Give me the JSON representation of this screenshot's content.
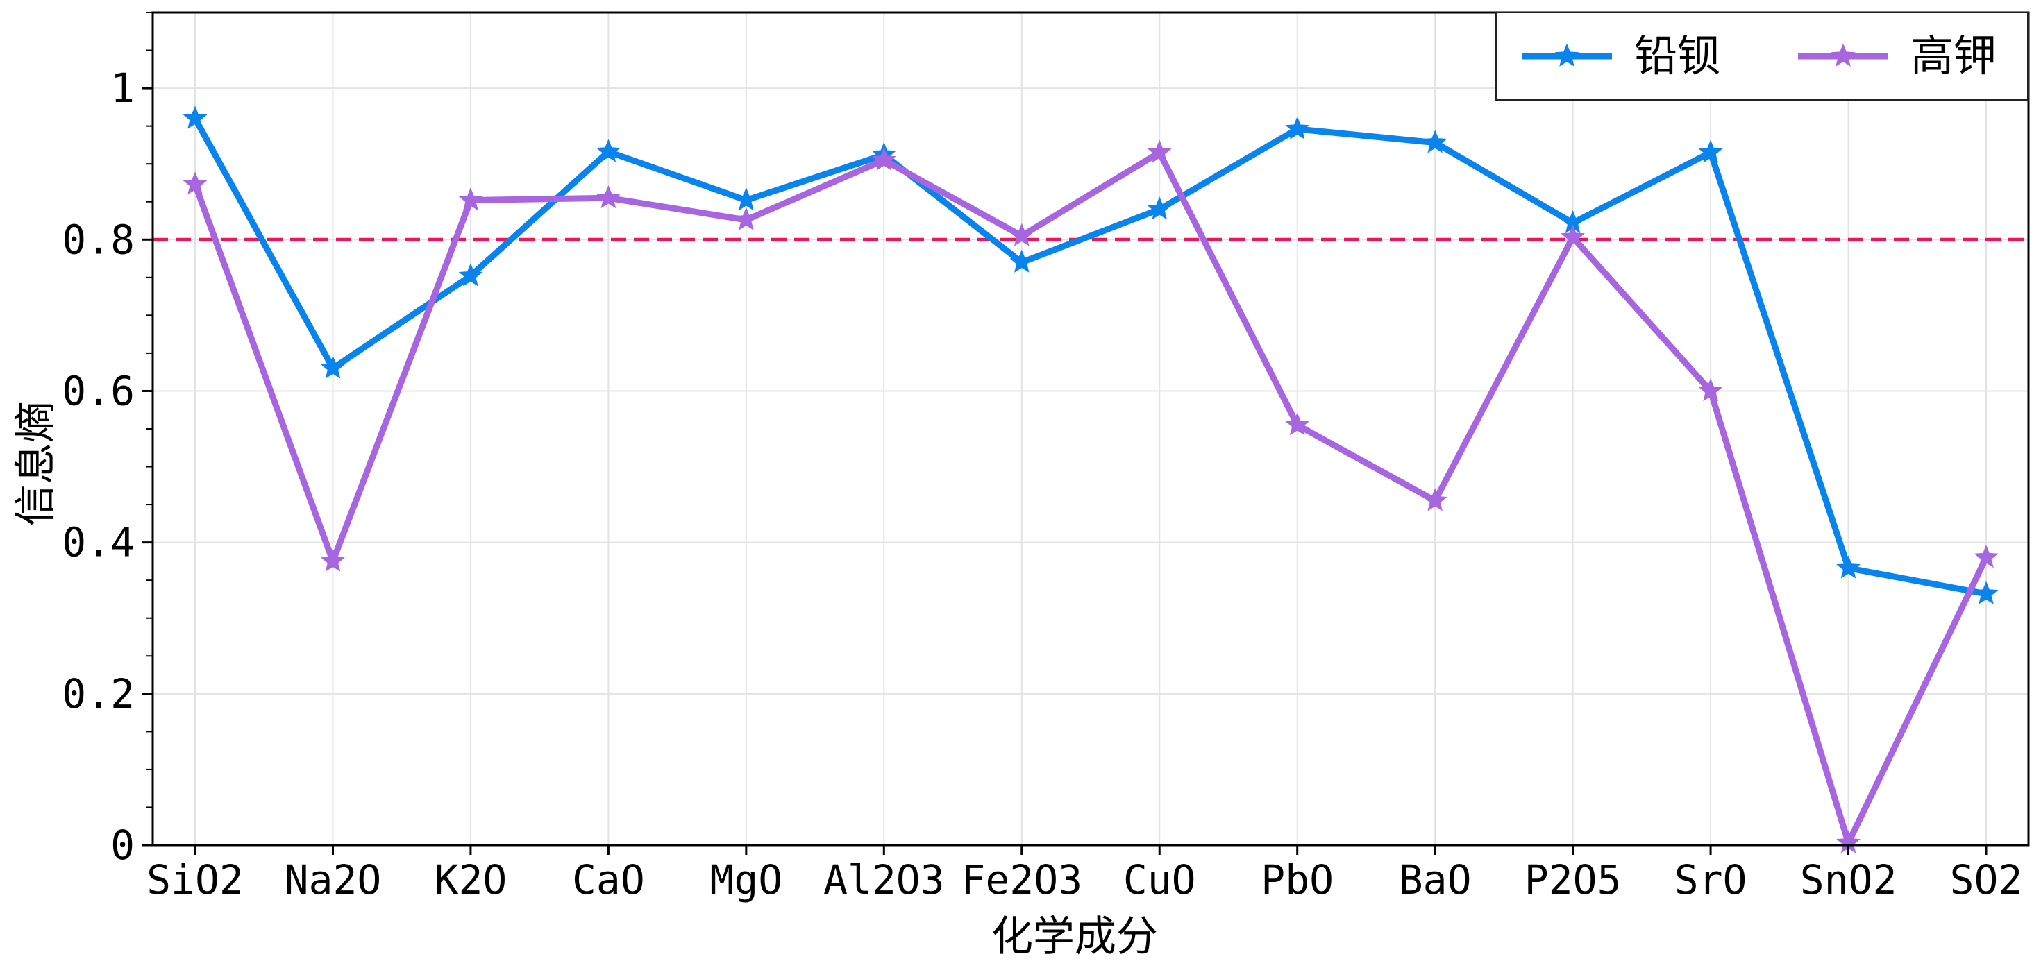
{
  "chart_data": {
    "type": "line",
    "title": "",
    "xlabel": "化学成分",
    "ylabel": "信息熵",
    "categories": [
      "SiO2",
      "Na2O",
      "K2O",
      "CaO",
      "MgO",
      "Al2O3",
      "Fe2O3",
      "CuO",
      "PbO",
      "BaO",
      "P2O5",
      "SrO",
      "SnO2",
      "SO2"
    ],
    "yticks": [
      "0",
      "0.2",
      "0.4",
      "0.6",
      "0.8",
      "1"
    ],
    "ytick_values": [
      0,
      0.2,
      0.4,
      0.6,
      0.8,
      1.0
    ],
    "ylim": [
      0,
      1.1
    ],
    "grid": true,
    "legend_position": "top-right",
    "marker": "star",
    "reference_line": {
      "y": 0.8,
      "style": "dashed",
      "color": "#f0145a"
    },
    "series": [
      {
        "name": "铅钡",
        "color": "#0a84ed",
        "values": [
          0.96,
          0.63,
          0.752,
          0.916,
          0.852,
          0.912,
          0.77,
          0.84,
          0.946,
          0.928,
          0.822,
          0.915,
          0.366,
          0.332
        ]
      },
      {
        "name": "高钾",
        "color": "#a865e0",
        "values": [
          0.873,
          0.375,
          0.852,
          0.855,
          0.826,
          0.905,
          0.805,
          0.915,
          0.555,
          0.455,
          0.803,
          0.6,
          0.003,
          0.38
        ]
      }
    ]
  }
}
